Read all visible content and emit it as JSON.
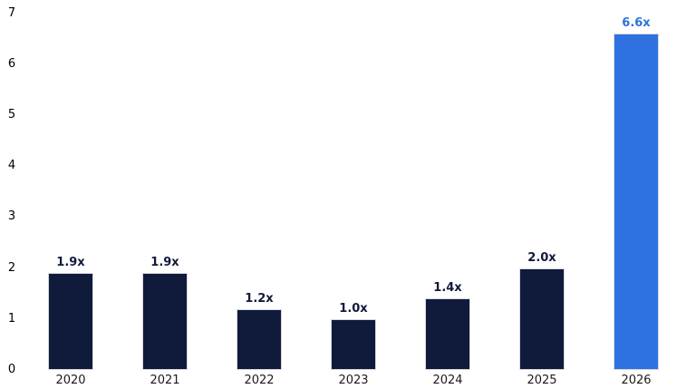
{
  "chart_data": {
    "type": "bar",
    "title": "",
    "xlabel": "",
    "ylabel": "",
    "categories": [
      "2020",
      "2021",
      "2022",
      "2023",
      "2024",
      "2025",
      "2026"
    ],
    "values": [
      1.9,
      1.9,
      1.2,
      1.0,
      1.4,
      2.0,
      6.6
    ],
    "value_labels": [
      "1.9x",
      "1.9x",
      "1.2x",
      "1.0x",
      "1.4x",
      "2.0x",
      "6.6x"
    ],
    "bar_colors": [
      "#101a3a",
      "#101a3a",
      "#101a3a",
      "#101a3a",
      "#101a3a",
      "#101a3a",
      "#2d72e0"
    ],
    "label_colors": [
      "#101a3a",
      "#101a3a",
      "#101a3a",
      "#101a3a",
      "#101a3a",
      "#101a3a",
      "#2d72e0"
    ],
    "highlight_index": 6,
    "accent_color": "#2d72e0",
    "base_color": "#101a3a",
    "ylim": [
      0,
      7
    ],
    "yticks": [
      "0",
      "1",
      "2",
      "3",
      "4",
      "5",
      "6",
      "7"
    ],
    "grid": false,
    "legend": null,
    "tick_text_color": "#000000",
    "category_text_color": "#1a1a1a"
  }
}
